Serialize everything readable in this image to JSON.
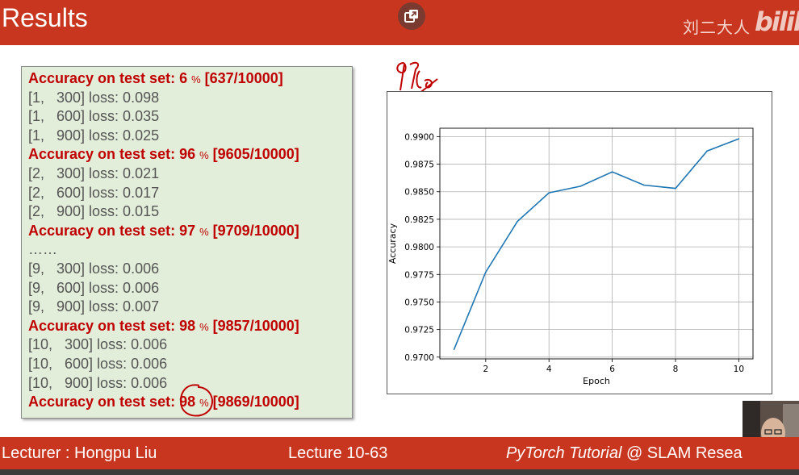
{
  "header": {
    "title": "Results",
    "watermark": "刘二大人",
    "logo": "bilib"
  },
  "log": {
    "lines": [
      {
        "type": "acc",
        "pre": "Accuracy on test set: 6 ",
        "pct": "%",
        "post": " [637/10000]"
      },
      {
        "type": "loss",
        "text": "[1,   300] loss: 0.098"
      },
      {
        "type": "loss",
        "text": "[1,   600] loss: 0.035"
      },
      {
        "type": "loss",
        "text": "[1,   900] loss: 0.025"
      },
      {
        "type": "acc",
        "pre": "Accuracy on test set: 96 ",
        "pct": "%",
        "post": " [9605/10000]"
      },
      {
        "type": "loss",
        "text": "[2,   300] loss: 0.021"
      },
      {
        "type": "loss",
        "text": "[2,   600] loss: 0.017"
      },
      {
        "type": "loss",
        "text": "[2,   900] loss: 0.015"
      },
      {
        "type": "acc",
        "pre": "Accuracy on test set: 97 ",
        "pct": "%",
        "post": " [9709/10000]"
      },
      {
        "type": "loss",
        "text": "……"
      },
      {
        "type": "loss",
        "text": "[9,   300] loss: 0.006"
      },
      {
        "type": "loss",
        "text": "[9,   600] loss: 0.006"
      },
      {
        "type": "loss",
        "text": "[9,   900] loss: 0.007"
      },
      {
        "type": "acc",
        "pre": "Accuracy on test set: 98 ",
        "pct": "%",
        "post": " [9857/10000]"
      },
      {
        "type": "loss",
        "text": "[10,   300] loss: 0.006"
      },
      {
        "type": "loss",
        "text": "[10,   600] loss: 0.006"
      },
      {
        "type": "loss",
        "text": "[10,   900] loss: 0.006"
      },
      {
        "type": "acc",
        "pre": "Accuracy on test set: 98 ",
        "pct": "%",
        "post": " [9869/10000]"
      }
    ]
  },
  "annotation": {
    "handwritten": "97%"
  },
  "chart_data": {
    "type": "line",
    "title": "",
    "xlabel": "Epoch",
    "ylabel": "Accuracy",
    "x": [
      1,
      2,
      3,
      4,
      5,
      6,
      7,
      8,
      9,
      10
    ],
    "series": [
      {
        "values": [
          0.9707,
          0.9777,
          0.9823,
          0.9849,
          0.9855,
          0.9868,
          0.9856,
          0.9853,
          0.9887,
          0.9898
        ]
      }
    ],
    "xticks": [
      "2",
      "4",
      "6",
      "8",
      "10"
    ],
    "yticks": [
      "0.9700",
      "0.9725",
      "0.9750",
      "0.9775",
      "0.9800",
      "0.9825",
      "0.9850",
      "0.9875",
      "0.9900"
    ],
    "xlim": [
      0.55,
      10.45
    ],
    "ylim": [
      0.96984,
      0.99076
    ],
    "grid": true,
    "line_color": "#1f77b4"
  },
  "footer": {
    "lecturer": "Lecturer : Hongpu Liu",
    "lecture": "Lecture 10-63",
    "course_italic": "PyTorch Tutorial",
    "course_rest": " @ SLAM Resea"
  }
}
